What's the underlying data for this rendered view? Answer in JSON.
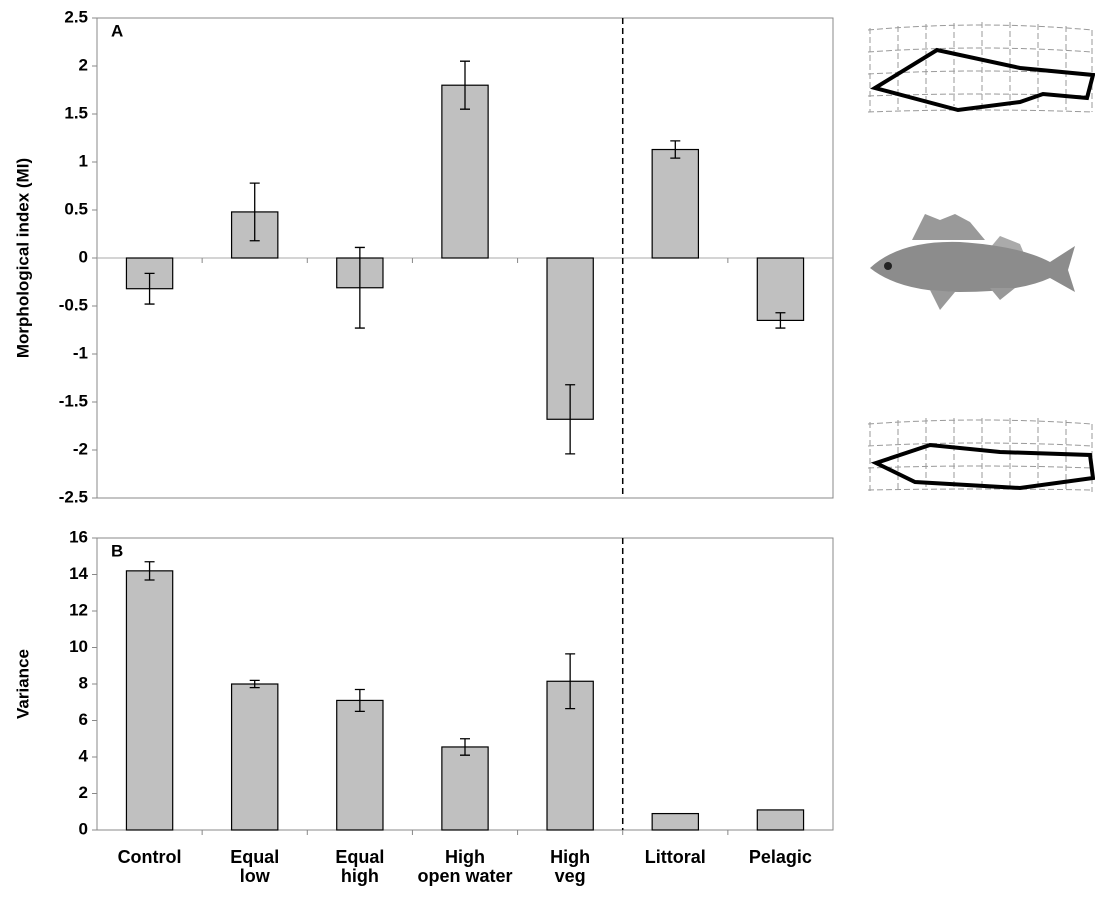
{
  "chart_data": [
    {
      "type": "bar",
      "panel_label": "A",
      "y_label": "Morphological index (MI)",
      "values": [
        -0.32,
        0.48,
        -0.31,
        1.8,
        -1.68,
        1.13,
        -0.65
      ],
      "errors": [
        0.16,
        0.3,
        0.42,
        0.25,
        0.36,
        0.09,
        0.08
      ],
      "color": "#c0c0c0",
      "ylim": [
        -2.5,
        2.5
      ],
      "yticks": [
        2.5,
        2,
        1.5,
        1,
        0.5,
        0,
        -0.5,
        -1,
        -1.5,
        -2,
        -2.5
      ]
    },
    {
      "type": "bar",
      "panel_label": "B",
      "y_label": "Variance",
      "categories": [
        "Control",
        "Equal\nlow",
        "Equal\nhigh",
        "High\nopen water",
        "High\nveg",
        "Littoral",
        "Pelagic"
      ],
      "values": [
        14.2,
        8.0,
        7.1,
        4.55,
        8.15,
        0.9,
        1.1
      ],
      "errors": [
        0.5,
        0.2,
        0.6,
        0.45,
        1.5,
        null,
        null
      ],
      "color": "#c0c0c0",
      "ylim": [
        0,
        16
      ],
      "yticks": [
        16,
        14,
        12,
        10,
        8,
        6,
        4,
        2,
        0
      ]
    }
  ]
}
